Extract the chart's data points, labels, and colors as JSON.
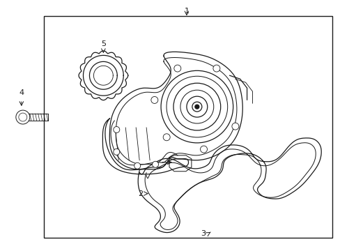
{
  "background_color": "#ffffff",
  "line_color": "#1a1a1a",
  "label_color": "#333333",
  "fig_width": 4.89,
  "fig_height": 3.6,
  "dpi": 100
}
